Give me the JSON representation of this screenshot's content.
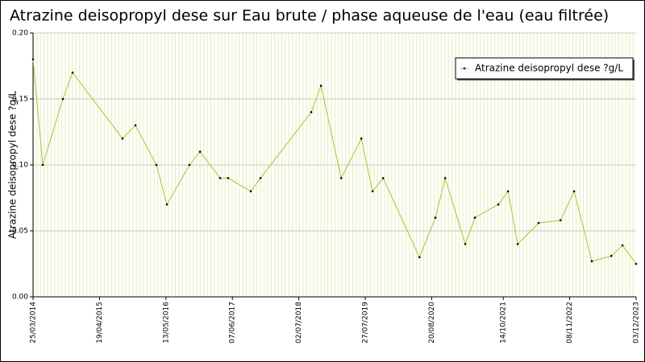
{
  "chart_data": {
    "type": "line",
    "title": "Atrazine deisopropyl dese sur Eau brute / phase aqueuse de l'eau (eau filtrée)",
    "y_label": "Atrazine deisopropyl dese ?g/L",
    "x": [
      "2014-03-25",
      "2014-05-21",
      "2014-09-16",
      "2014-11-12",
      "2015-09-01",
      "2015-11-16",
      "2016-03-18",
      "2016-05-19",
      "2016-09-28",
      "2016-11-29",
      "2017-03-27",
      "2017-05-13",
      "2017-09-23",
      "2017-11-19",
      "2018-09-13",
      "2018-11-09",
      "2019-03-08",
      "2019-07-04",
      "2019-09-08",
      "2019-11-09",
      "2020-06-09",
      "2020-09-11",
      "2020-11-07",
      "2021-03-05",
      "2021-05-01",
      "2021-09-15",
      "2021-11-11",
      "2022-01-07",
      "2022-05-10",
      "2022-09-15",
      "2022-12-04",
      "2023-03-18",
      "2023-07-10",
      "2023-09-14",
      "2023-12-03"
    ],
    "series": [
      {
        "name": "Atrazine deisopropyl dese ?g/L",
        "color": "#9acd32",
        "values": [
          0.18,
          0.1,
          0.15,
          0.17,
          0.12,
          0.13,
          0.1,
          0.07,
          0.1,
          0.11,
          0.09,
          0.09,
          0.08,
          0.09,
          0.14,
          0.16,
          0.09,
          0.12,
          0.08,
          0.09,
          0.03,
          0.06,
          0.09,
          0.04,
          0.06,
          0.07,
          0.08,
          0.04,
          0.056,
          0.058,
          0.08,
          0.027,
          0.031,
          0.039,
          0.025
        ]
      }
    ],
    "xlim": [
      "2014-03-25",
      "2023-12-03"
    ],
    "xticks": [
      {
        "value": "2014-03-25",
        "label": "25/03/2014"
      },
      {
        "value": "2015-04-19",
        "label": "19/04/2015"
      },
      {
        "value": "2016-05-13",
        "label": "13/05/2016"
      },
      {
        "value": "2017-06-07",
        "label": "07/06/2017"
      },
      {
        "value": "2018-07-02",
        "label": "02/07/2018"
      },
      {
        "value": "2019-07-27",
        "label": "27/07/2019"
      },
      {
        "value": "2020-08-20",
        "label": "20/08/2020"
      },
      {
        "value": "2021-10-14",
        "label": "14/10/2021"
      },
      {
        "value": "2022-11-08",
        "label": "08/11/2022"
      },
      {
        "value": "2023-12-03",
        "label": "03/12/2023"
      }
    ],
    "ylim": [
      0,
      0.2
    ],
    "yticks": [
      {
        "value": 0,
        "label": "0.00"
      },
      {
        "value": 0.05,
        "label": "0.05"
      },
      {
        "value": 0.1,
        "label": "0.10"
      },
      {
        "value": 0.15,
        "label": "0.15"
      },
      {
        "value": 0.2,
        "label": "0.20"
      }
    ],
    "grid": true,
    "legend": "top-right"
  }
}
